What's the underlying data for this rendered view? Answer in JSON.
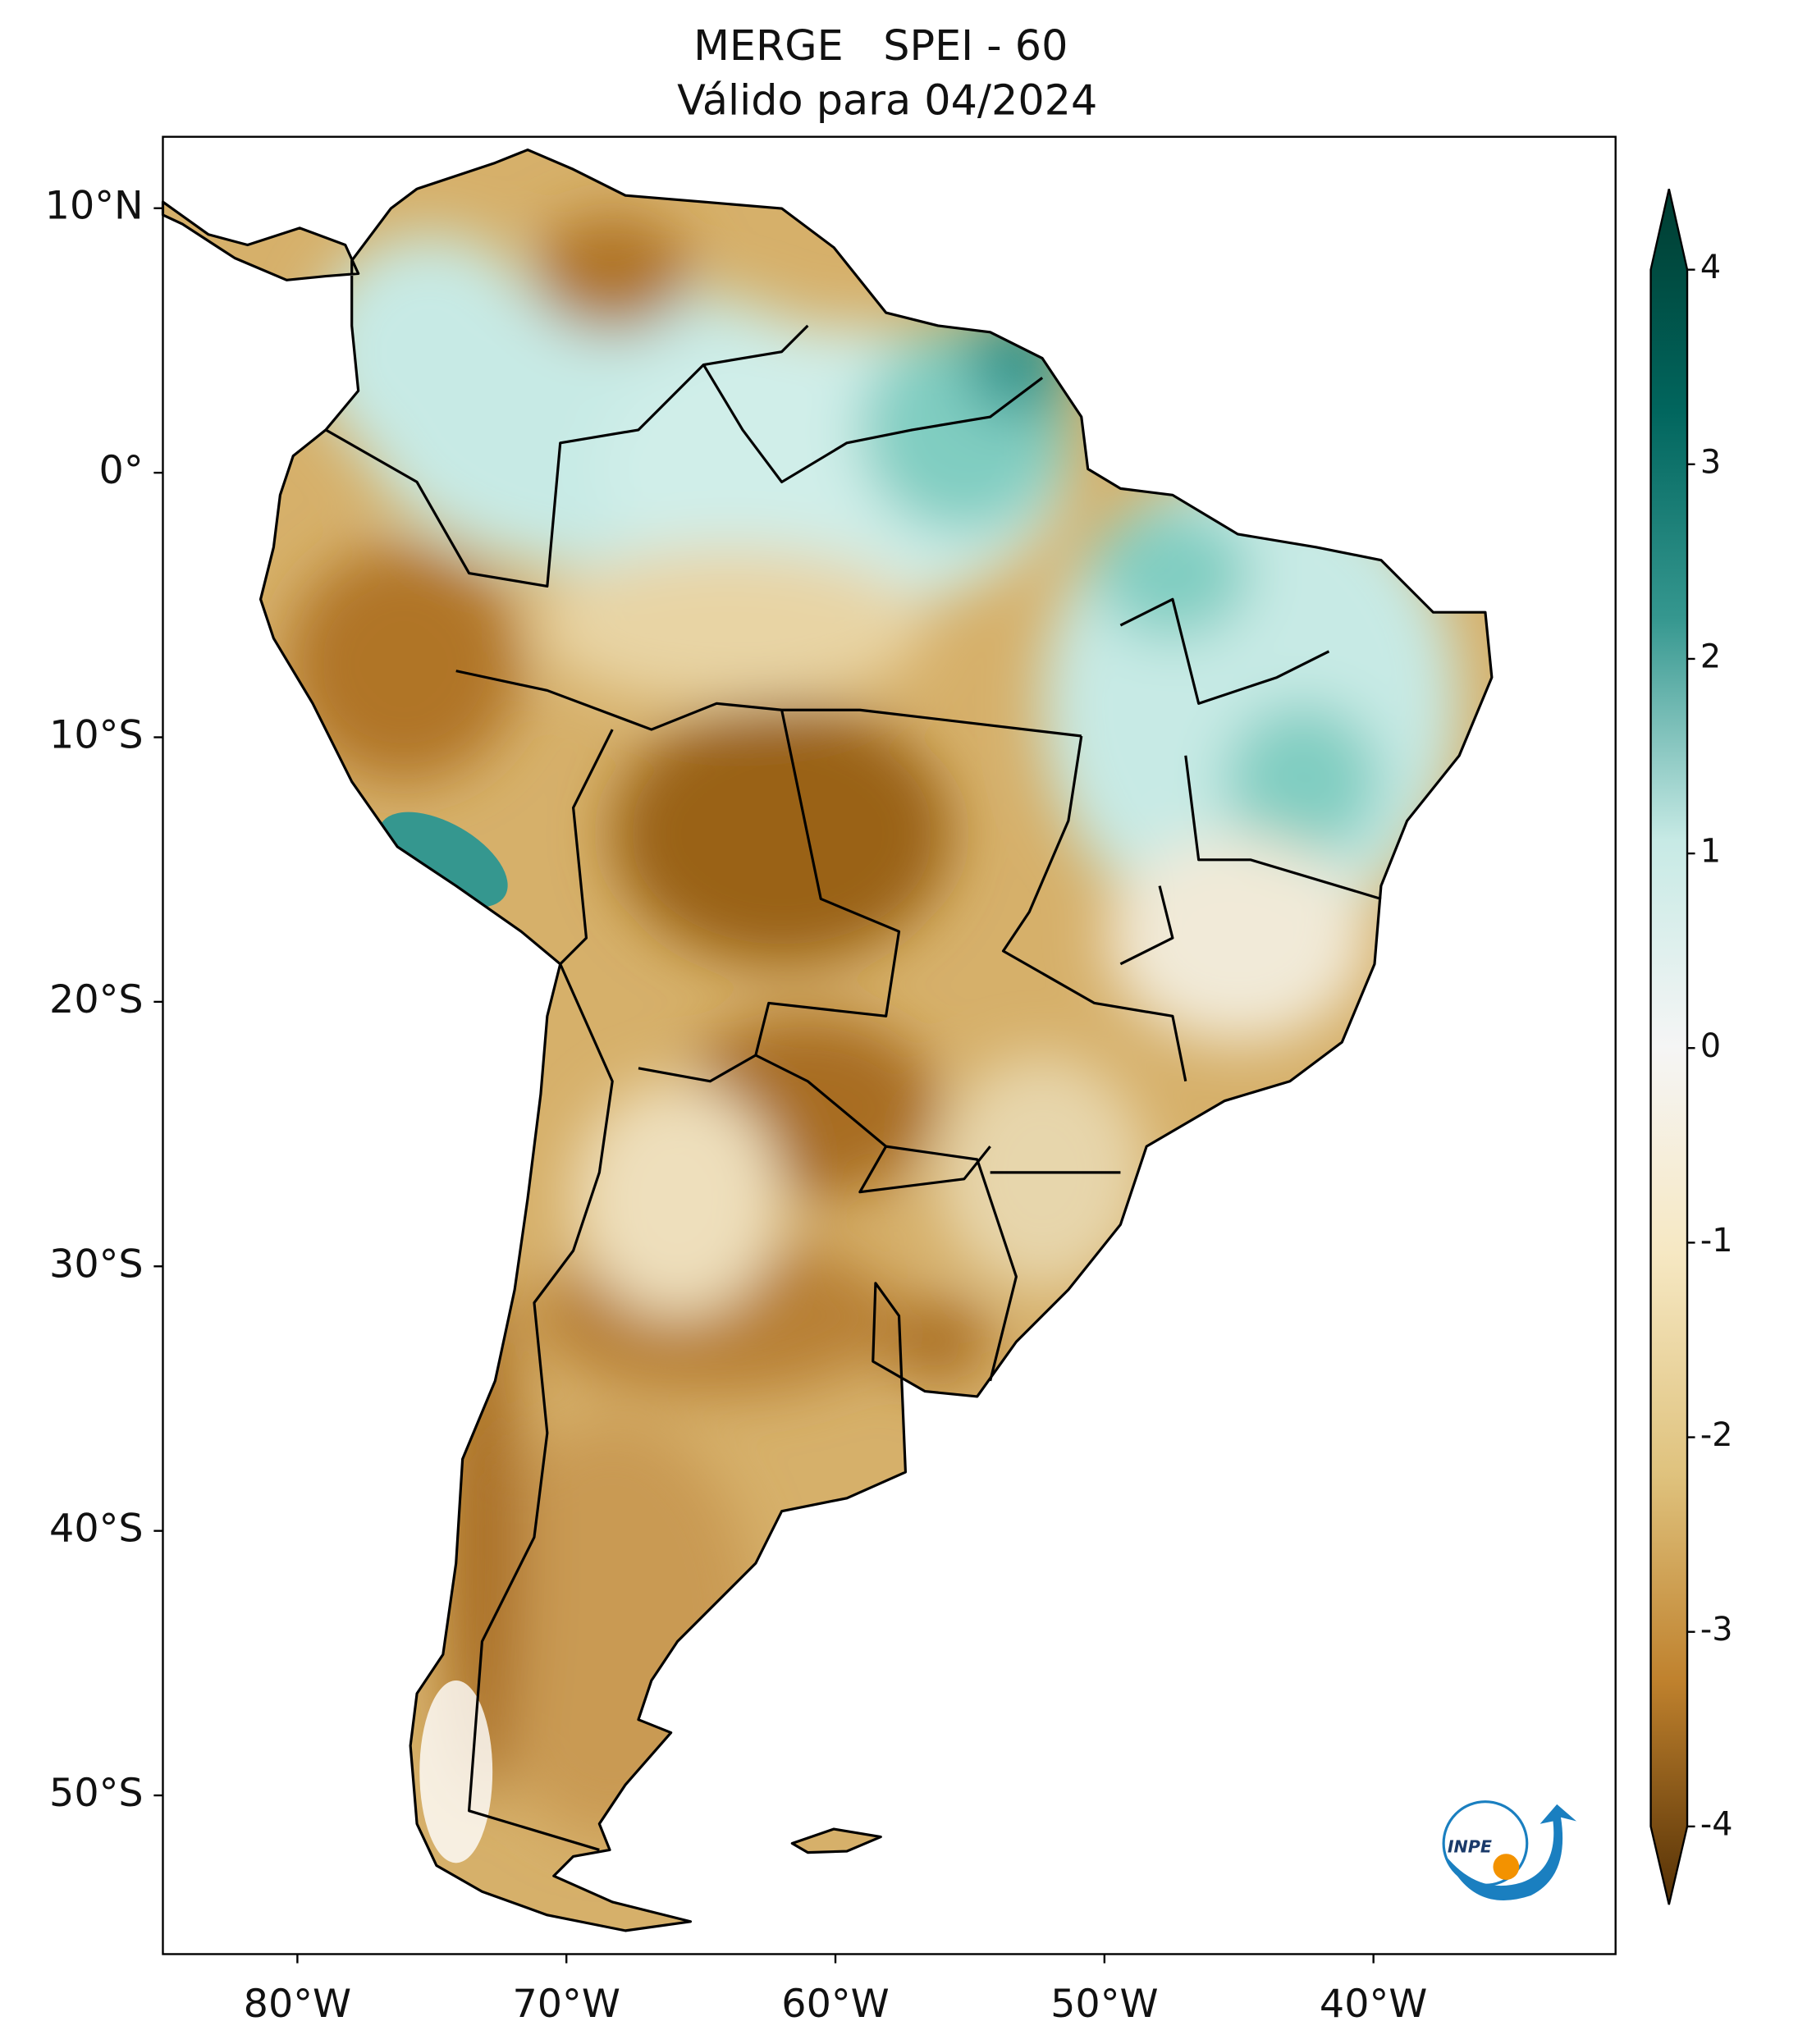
{
  "title": [
    "MERGE   SPEI - 60",
    "Válido para 04/2024"
  ],
  "map": {
    "xlim": [
      -85,
      -31
    ],
    "ylim": [
      -56,
      12.7
    ],
    "xticks": [
      {
        "value": -80,
        "label": "80°W"
      },
      {
        "value": -70,
        "label": "70°W"
      },
      {
        "value": -60,
        "label": "60°W"
      },
      {
        "value": -50,
        "label": "50°W"
      },
      {
        "value": -40,
        "label": "40°W"
      }
    ],
    "yticks": [
      {
        "value": 10,
        "label": "10°N"
      },
      {
        "value": 0,
        "label": "0°"
      },
      {
        "value": -10,
        "label": "10°S"
      },
      {
        "value": -20,
        "label": "20°S"
      },
      {
        "value": -30,
        "label": "30°S"
      },
      {
        "value": -40,
        "label": "40°S"
      },
      {
        "value": -50,
        "label": "50°S"
      }
    ]
  },
  "colorbar": {
    "clim": [
      -4,
      4
    ],
    "ticks": [
      4,
      3,
      2,
      1,
      0,
      -1,
      -2,
      -3,
      -4
    ],
    "extend": "both"
  },
  "logo_text": "INPE"
}
